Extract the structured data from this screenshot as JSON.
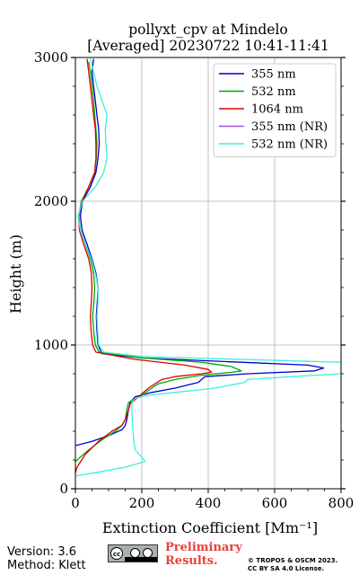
{
  "chart_data": {
    "type": "line",
    "title": [
      "pollyxt_cpv at Mindelo",
      "[Averaged] 20230722 10:41-11:41"
    ],
    "xlabel": "Extinction Coefficient [Mm⁻¹]",
    "ylabel": "Height (m)",
    "xlim": [
      0,
      800
    ],
    "ylim": [
      0,
      3000
    ],
    "xticks": [
      0,
      200,
      400,
      600,
      800
    ],
    "yticks": [
      0,
      1000,
      2000,
      3000
    ],
    "grid": true,
    "legend_position": "top-right",
    "series": [
      {
        "name": "355 nm",
        "color": "#0000cc",
        "points": [
          [
            55,
            2990
          ],
          [
            50,
            2900
          ],
          [
            55,
            2800
          ],
          [
            60,
            2700
          ],
          [
            65,
            2600
          ],
          [
            70,
            2500
          ],
          [
            72,
            2400
          ],
          [
            68,
            2300
          ],
          [
            62,
            2200
          ],
          [
            45,
            2100
          ],
          [
            22,
            2000
          ],
          [
            15,
            1900
          ],
          [
            20,
            1800
          ],
          [
            35,
            1700
          ],
          [
            50,
            1600
          ],
          [
            62,
            1500
          ],
          [
            68,
            1400
          ],
          [
            66,
            1300
          ],
          [
            63,
            1200
          ],
          [
            65,
            1100
          ],
          [
            68,
            1000
          ],
          [
            80,
            940
          ],
          [
            200,
            910
          ],
          [
            500,
            880
          ],
          [
            700,
            860
          ],
          [
            748,
            840
          ],
          [
            720,
            820
          ],
          [
            520,
            800
          ],
          [
            390,
            780
          ],
          [
            380,
            760
          ],
          [
            370,
            740
          ],
          [
            300,
            700
          ],
          [
            230,
            670
          ],
          [
            180,
            640
          ],
          [
            165,
            600
          ],
          [
            160,
            550
          ],
          [
            155,
            480
          ],
          [
            150,
            440
          ],
          [
            140,
            410
          ],
          [
            100,
            370
          ],
          [
            50,
            330
          ],
          [
            0,
            300
          ]
        ]
      },
      {
        "name": "532 nm",
        "color": "#00aa00",
        "points": [
          [
            40,
            2970
          ],
          [
            45,
            2900
          ],
          [
            50,
            2800
          ],
          [
            55,
            2700
          ],
          [
            58,
            2600
          ],
          [
            62,
            2500
          ],
          [
            65,
            2400
          ],
          [
            63,
            2300
          ],
          [
            58,
            2200
          ],
          [
            40,
            2100
          ],
          [
            18,
            2000
          ],
          [
            10,
            1900
          ],
          [
            15,
            1800
          ],
          [
            30,
            1700
          ],
          [
            45,
            1600
          ],
          [
            55,
            1500
          ],
          [
            58,
            1400
          ],
          [
            56,
            1300
          ],
          [
            52,
            1200
          ],
          [
            55,
            1100
          ],
          [
            60,
            1000
          ],
          [
            72,
            950
          ],
          [
            200,
            910
          ],
          [
            380,
            880
          ],
          [
            470,
            850
          ],
          [
            500,
            820
          ],
          [
            470,
            810
          ],
          [
            380,
            790
          ],
          [
            300,
            760
          ],
          [
            250,
            730
          ],
          [
            230,
            700
          ],
          [
            200,
            650
          ],
          [
            175,
            620
          ],
          [
            160,
            600
          ],
          [
            155,
            550
          ],
          [
            150,
            480
          ],
          [
            140,
            440
          ],
          [
            120,
            400
          ],
          [
            80,
            340
          ],
          [
            40,
            270
          ],
          [
            0,
            190
          ]
        ]
      },
      {
        "name": "1064 nm",
        "color": "#dd0000",
        "points": [
          [
            35,
            2990
          ],
          [
            40,
            2900
          ],
          [
            45,
            2800
          ],
          [
            50,
            2700
          ],
          [
            55,
            2600
          ],
          [
            60,
            2500
          ],
          [
            62,
            2400
          ],
          [
            62,
            2300
          ],
          [
            58,
            2200
          ],
          [
            40,
            2100
          ],
          [
            20,
            2000
          ],
          [
            10,
            1900
          ],
          [
            12,
            1800
          ],
          [
            25,
            1700
          ],
          [
            40,
            1600
          ],
          [
            48,
            1500
          ],
          [
            50,
            1400
          ],
          [
            48,
            1300
          ],
          [
            45,
            1200
          ],
          [
            47,
            1100
          ],
          [
            52,
            1000
          ],
          [
            62,
            950
          ],
          [
            180,
            900
          ],
          [
            330,
            860
          ],
          [
            400,
            830
          ],
          [
            410,
            810
          ],
          [
            380,
            800
          ],
          [
            300,
            780
          ],
          [
            260,
            760
          ],
          [
            240,
            730
          ],
          [
            220,
            700
          ],
          [
            200,
            660
          ],
          [
            180,
            620
          ],
          [
            165,
            590
          ],
          [
            160,
            550
          ],
          [
            150,
            480
          ],
          [
            140,
            440
          ],
          [
            110,
            400
          ],
          [
            70,
            330
          ],
          [
            30,
            240
          ],
          [
            5,
            150
          ],
          [
            0,
            110
          ]
        ]
      },
      {
        "name": "355 nm (NR)",
        "color": "#a64ce0",
        "points": []
      },
      {
        "name": "532 nm (NR)",
        "color": "#3cf0d8",
        "points": [
          [
            45,
            2990
          ],
          [
            55,
            2900
          ],
          [
            65,
            2800
          ],
          [
            80,
            2700
          ],
          [
            95,
            2600
          ],
          [
            90,
            2500
          ],
          [
            92,
            2400
          ],
          [
            95,
            2300
          ],
          [
            85,
            2200
          ],
          [
            60,
            2100
          ],
          [
            22,
            2000
          ],
          [
            8,
            1900
          ],
          [
            15,
            1800
          ],
          [
            30,
            1700
          ],
          [
            48,
            1600
          ],
          [
            60,
            1500
          ],
          [
            68,
            1400
          ],
          [
            68,
            1300
          ],
          [
            65,
            1200
          ],
          [
            67,
            1100
          ],
          [
            70,
            1000
          ],
          [
            85,
            950
          ],
          [
            200,
            920
          ],
          [
            500,
            900
          ],
          [
            800,
            880
          ],
          [
            800,
            800
          ],
          [
            650,
            780
          ],
          [
            520,
            760
          ],
          [
            510,
            740
          ],
          [
            420,
            700
          ],
          [
            300,
            670
          ],
          [
            220,
            650
          ],
          [
            180,
            630
          ],
          [
            170,
            600
          ],
          [
            170,
            550
          ],
          [
            172,
            450
          ],
          [
            175,
            350
          ],
          [
            180,
            270
          ],
          [
            200,
            220
          ],
          [
            210,
            190
          ],
          [
            150,
            150
          ],
          [
            80,
            120
          ],
          [
            30,
            100
          ],
          [
            0,
            90
          ]
        ]
      }
    ]
  },
  "footer": {
    "version": "Version: 3.6",
    "method": "Method: Klett",
    "preliminary_line1": "Preliminary",
    "preliminary_line2": "Results.",
    "license_line1": "© TROPOS & OSCM 2023.",
    "license_line2": "CC BY SA 4.0 License."
  }
}
